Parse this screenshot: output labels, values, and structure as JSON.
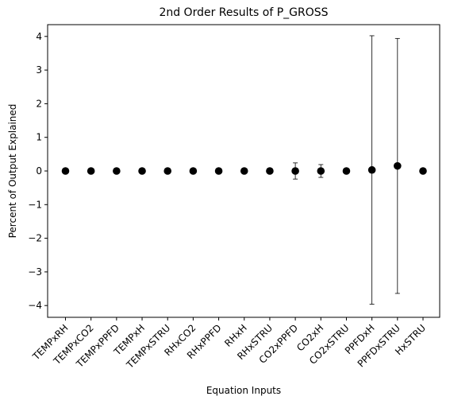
{
  "chart_data": {
    "type": "scatter",
    "title": "2nd Order Results of P_GROSS",
    "xlabel": "Equation Inputs",
    "ylabel": "Percent of Output Explained",
    "ylim": [
      -4.35,
      4.35
    ],
    "yticks": [
      -4,
      -3,
      -2,
      -1,
      0,
      1,
      2,
      3,
      4
    ],
    "categories": [
      "TEMPxRH",
      "TEMPxCO2",
      "TEMPxPPFD",
      "TEMPxH",
      "TEMPxSTRU",
      "RHxCO2",
      "RHxPPFD",
      "RHxH",
      "RHxSTRU",
      "CO2xPPFD",
      "CO2xH",
      "CO2xSTRU",
      "PPFDxH",
      "PPFDxSTRU",
      "HxSTRU"
    ],
    "values": [
      0,
      0,
      0,
      0,
      0,
      0,
      0,
      0,
      0,
      0,
      0,
      0,
      0.03,
      0.15,
      0
    ],
    "errors": [
      0,
      0,
      0,
      0,
      0,
      0,
      0,
      0,
      0,
      0.24,
      0.19,
      0,
      3.99,
      3.79,
      0
    ],
    "marker_color": "#000000",
    "grid": false
  }
}
